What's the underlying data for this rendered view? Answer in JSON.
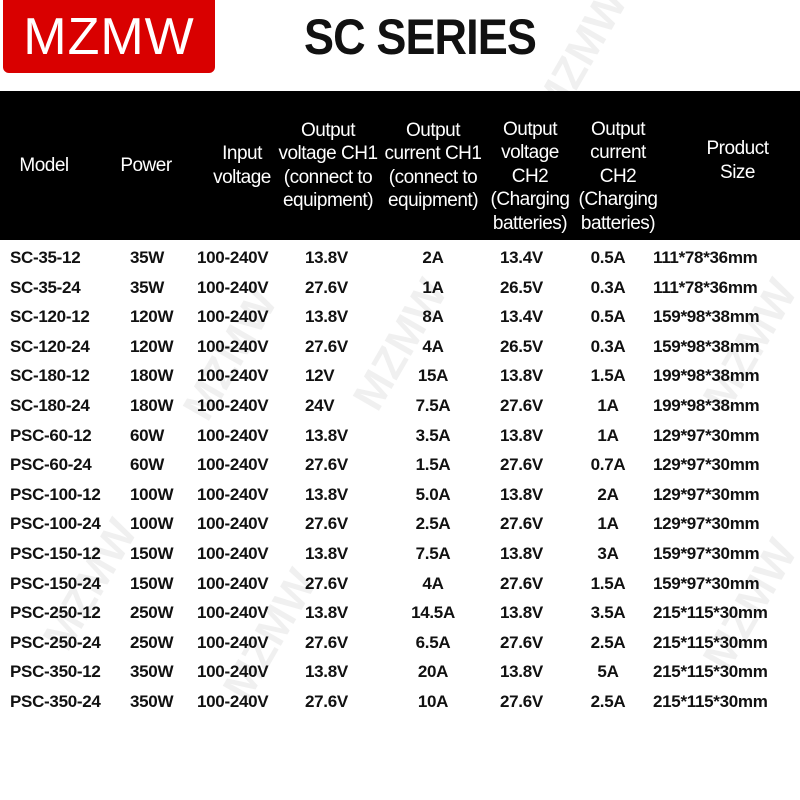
{
  "logo": {
    "text": "MZMW",
    "color": "#d90000"
  },
  "title": "SC SERIES",
  "watermark": "MZMW",
  "columns": [
    "Model",
    "Power",
    "Input voltage",
    "Output voltage CH1 (connect to equipment)",
    "Output current CH1 (connect to equipment)",
    "Output voltage CH2 (Charging batteries)",
    "Output current CH2 (Charging batteries)",
    "Product Size"
  ],
  "rows": [
    [
      "SC-35-12",
      "35W",
      "100-240V",
      "13.8V",
      "2A",
      "13.4V",
      "0.5A",
      "111*78*36mm"
    ],
    [
      "SC-35-24",
      "35W",
      "100-240V",
      "27.6V",
      "1A",
      "26.5V",
      "0.3A",
      "111*78*36mm"
    ],
    [
      "SC-120-12",
      "120W",
      "100-240V",
      "13.8V",
      "8A",
      "13.4V",
      "0.5A",
      "159*98*38mm"
    ],
    [
      "SC-120-24",
      "120W",
      "100-240V",
      "27.6V",
      "4A",
      "26.5V",
      "0.3A",
      "159*98*38mm"
    ],
    [
      "SC-180-12",
      "180W",
      "100-240V",
      "12V",
      "15A",
      "13.8V",
      "1.5A",
      "199*98*38mm"
    ],
    [
      "SC-180-24",
      "180W",
      "100-240V",
      "24V",
      "7.5A",
      "27.6V",
      "1A",
      "199*98*38mm"
    ],
    [
      "PSC-60-12",
      "60W",
      "100-240V",
      "13.8V",
      "3.5A",
      "13.8V",
      "1A",
      "129*97*30mm"
    ],
    [
      "PSC-60-24",
      "60W",
      "100-240V",
      "27.6V",
      "1.5A",
      "27.6V",
      "0.7A",
      "129*97*30mm"
    ],
    [
      "PSC-100-12",
      "100W",
      "100-240V",
      "13.8V",
      "5.0A",
      "13.8V",
      "2A",
      "129*97*30mm"
    ],
    [
      "PSC-100-24",
      "100W",
      "100-240V",
      "27.6V",
      "2.5A",
      "27.6V",
      "1A",
      "129*97*30mm"
    ],
    [
      "PSC-150-12",
      "150W",
      "100-240V",
      "13.8V",
      "7.5A",
      "13.8V",
      "3A",
      "159*97*30mm"
    ],
    [
      "PSC-150-24",
      "150W",
      "100-240V",
      "27.6V",
      "4A",
      "27.6V",
      "1.5A",
      "159*97*30mm"
    ],
    [
      "PSC-250-12",
      "250W",
      "100-240V",
      "13.8V",
      "14.5A",
      "13.8V",
      "3.5A",
      "215*115*30mm"
    ],
    [
      "PSC-250-24",
      "250W",
      "100-240V",
      "27.6V",
      "6.5A",
      "27.6V",
      "2.5A",
      "215*115*30mm"
    ],
    [
      "PSC-350-12",
      "350W",
      "100-240V",
      "13.8V",
      "20A",
      "13.8V",
      "5A",
      "215*115*30mm"
    ],
    [
      "PSC-350-24",
      "350W",
      "100-240V",
      "27.6V",
      "10A",
      "27.6V",
      "2.5A",
      "215*115*30mm"
    ]
  ]
}
